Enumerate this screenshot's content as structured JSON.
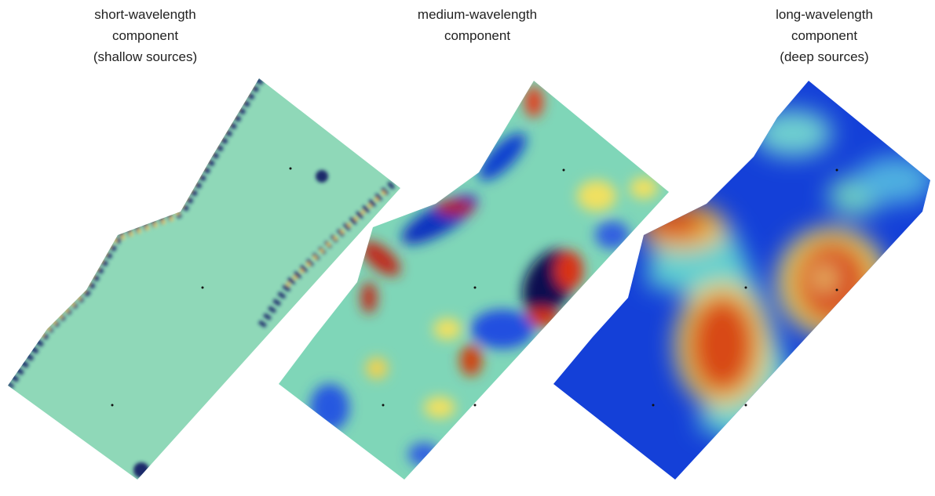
{
  "panels": [
    {
      "title_lines": [
        "short-wavelength",
        "component",
        "(shallow sources)"
      ]
    },
    {
      "title_lines": [
        "medium-wavelength",
        "component"
      ]
    },
    {
      "title_lines": [
        "long-wavelength",
        "component",
        "(deep sources)"
      ]
    }
  ]
}
